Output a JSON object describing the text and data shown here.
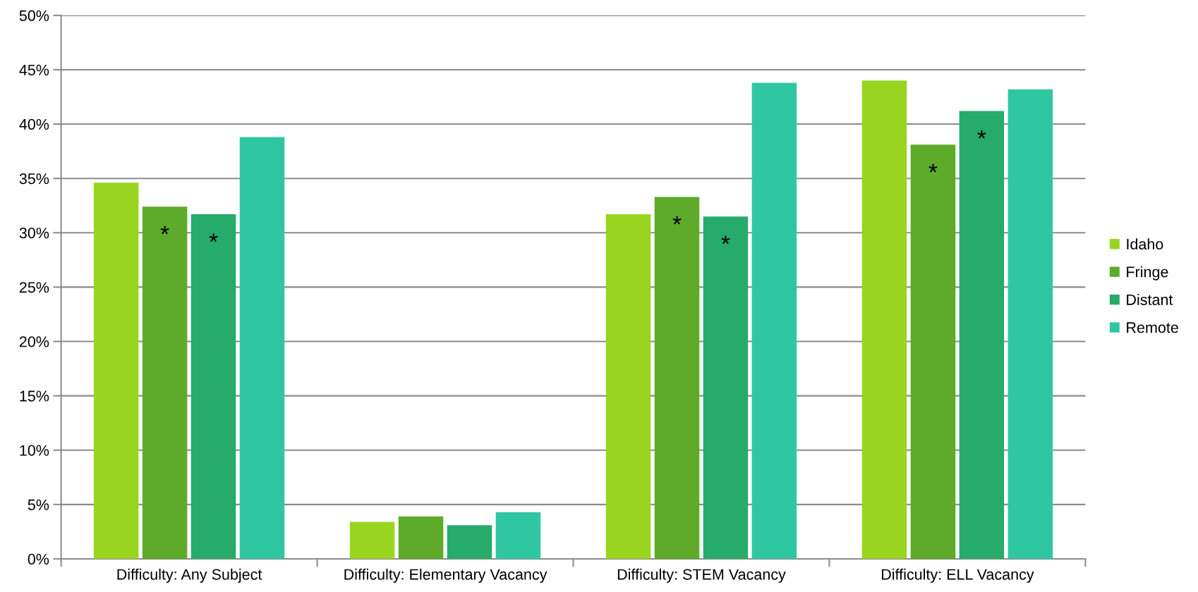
{
  "chart_data": {
    "type": "bar",
    "categories": [
      "Difficulty: Any Subject",
      "Difficulty: Elementary Vacancy",
      "Difficulty: STEM Vacancy",
      "Difficulty: ELL Vacancy"
    ],
    "series": [
      {
        "name": "Idaho",
        "color": "#99d420",
        "values": [
          34.6,
          3.4,
          31.7,
          44.0
        ]
      },
      {
        "name": "Fringe",
        "color": "#5eaa2a",
        "values": [
          32.4,
          3.9,
          33.3,
          38.1
        ],
        "value_labels": [
          "*",
          null,
          "*",
          "*"
        ]
      },
      {
        "name": "Distant",
        "color": "#26ab6a",
        "values": [
          31.7,
          3.1,
          31.5,
          41.2
        ],
        "value_labels": [
          "*",
          null,
          "*",
          "*"
        ]
      },
      {
        "name": "Remote",
        "color": "#2fc7a2",
        "values": [
          38.8,
          4.3,
          43.8,
          43.2
        ]
      }
    ],
    "ylim": [
      0,
      50
    ],
    "yticks": [
      {
        "value": 0,
        "label": "0%"
      },
      {
        "value": 5,
        "label": "5%"
      },
      {
        "value": 10,
        "label": "10%"
      },
      {
        "value": 15,
        "label": "15%"
      },
      {
        "value": 20,
        "label": "20%"
      },
      {
        "value": 25,
        "label": "25%"
      },
      {
        "value": 30,
        "label": "30%"
      },
      {
        "value": 35,
        "label": "35%"
      },
      {
        "value": 40,
        "label": "40%"
      },
      {
        "value": 45,
        "label": "45%"
      },
      {
        "value": 50,
        "label": "50%"
      }
    ],
    "grid": "y",
    "legend": "right"
  }
}
